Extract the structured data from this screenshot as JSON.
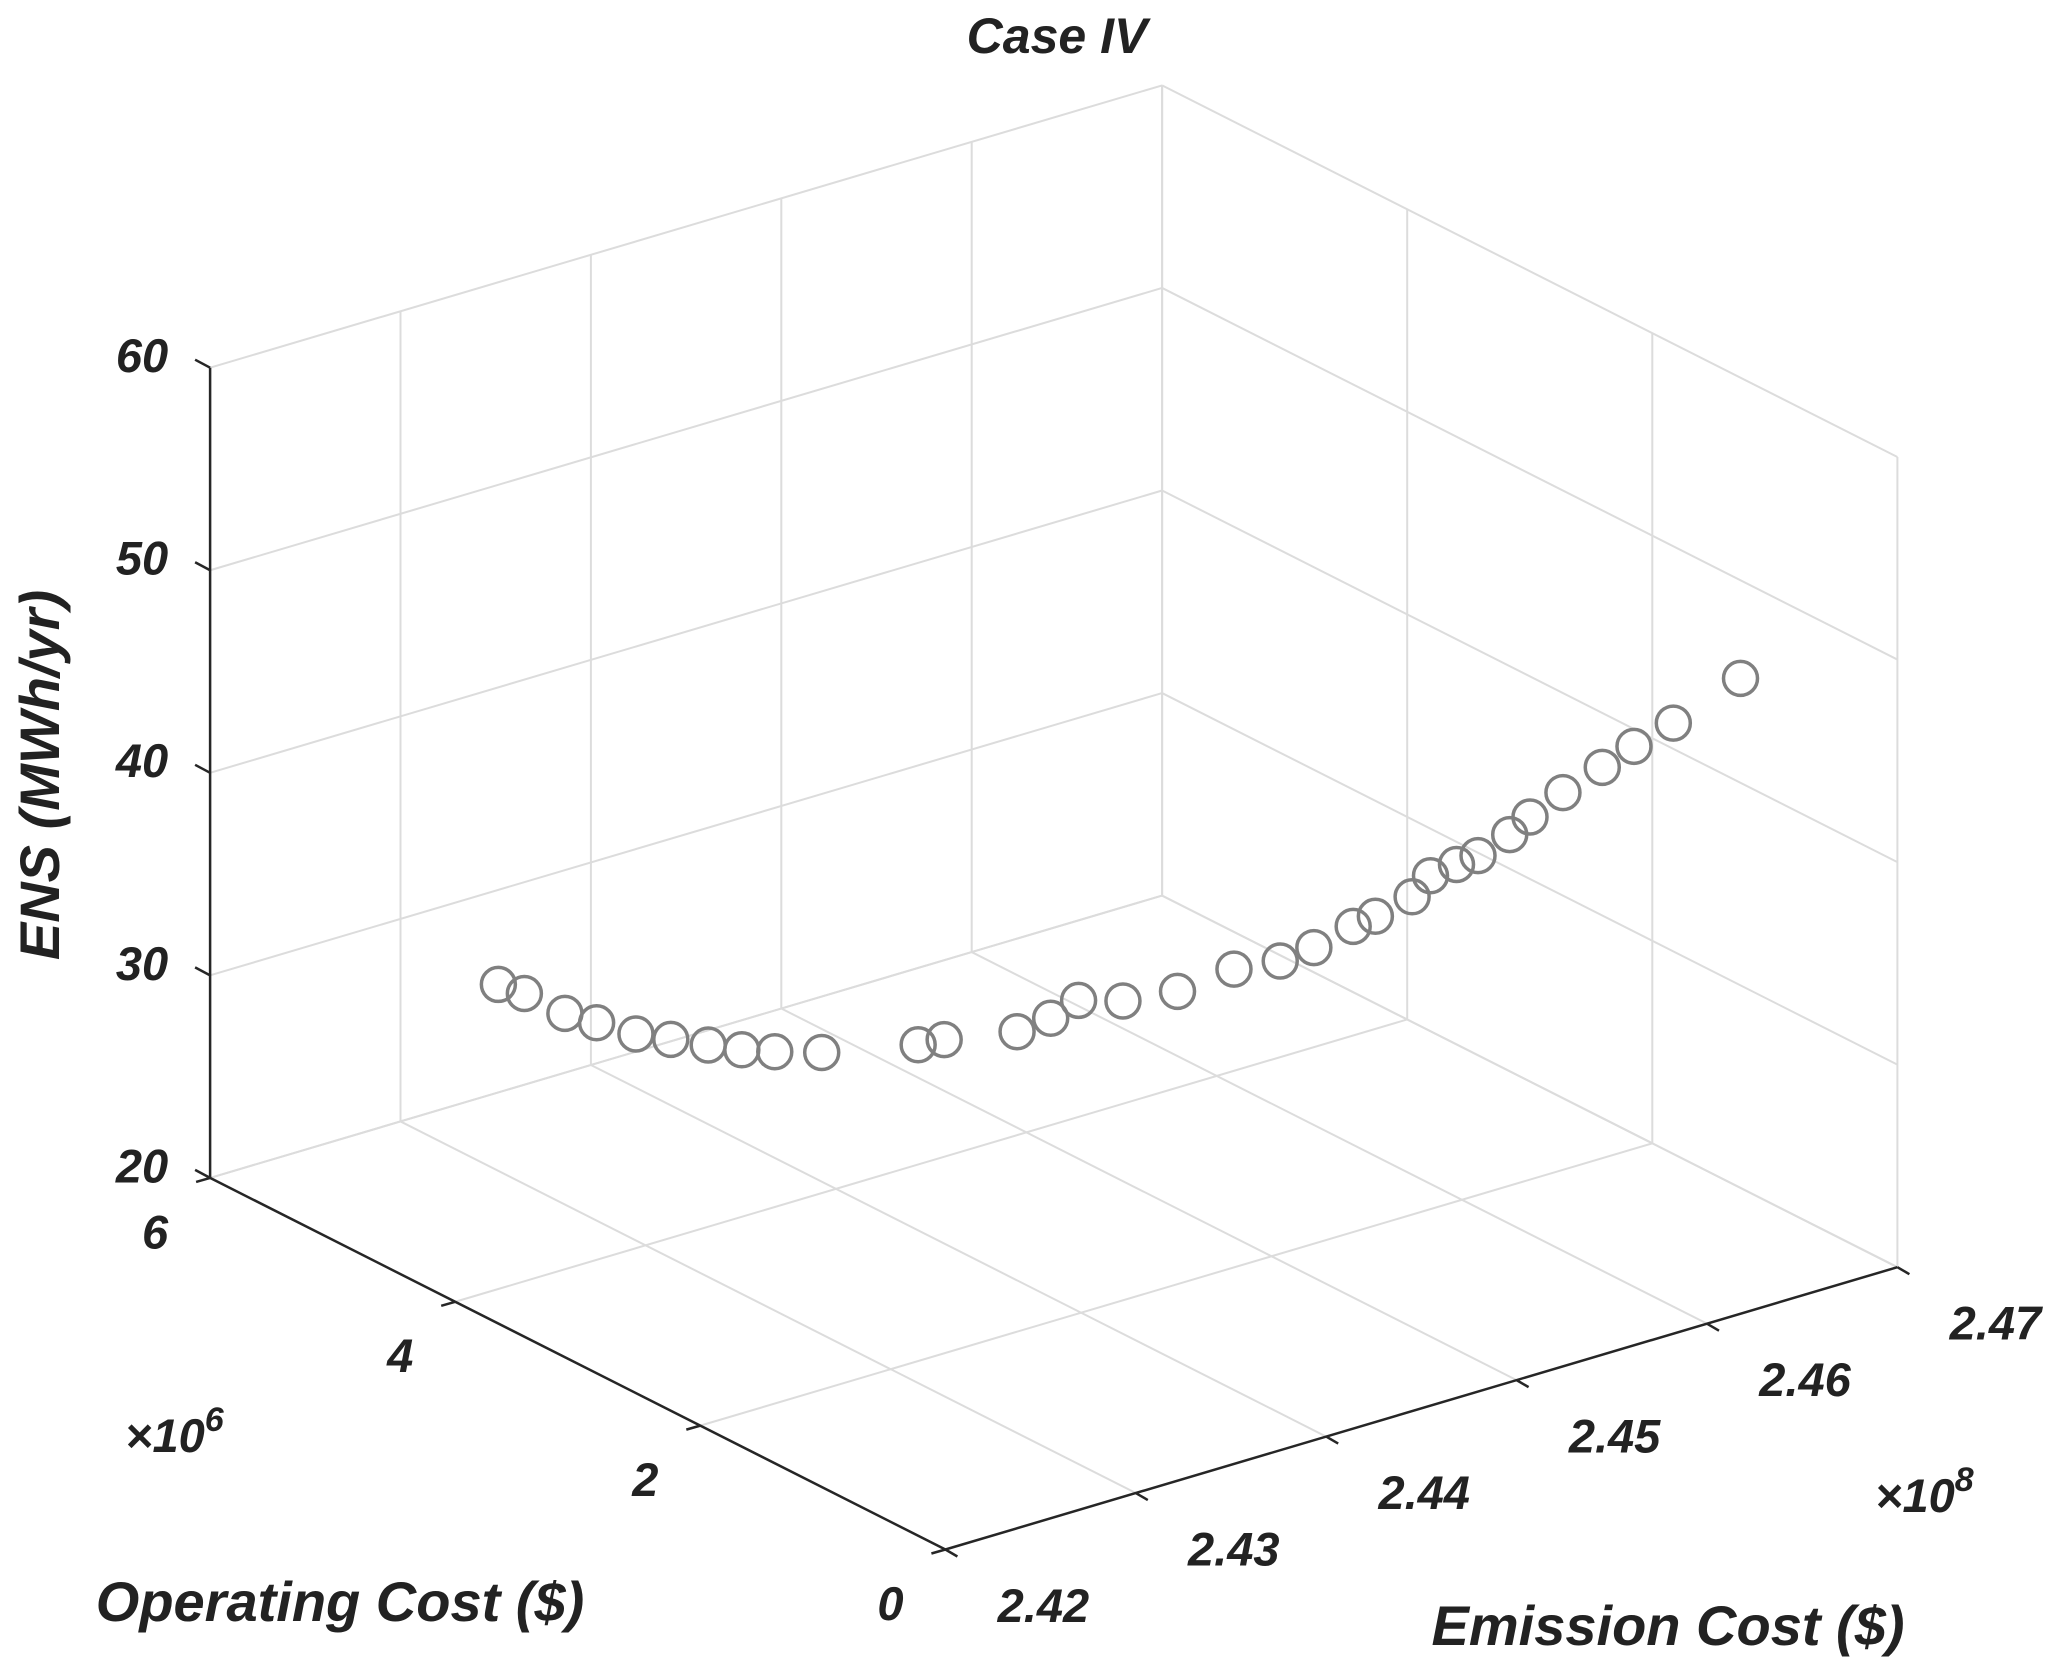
{
  "chart_data": {
    "type": "scatter3d",
    "title": "Case IV",
    "xlabel": "Operating Cost ($)",
    "ylabel": "Emission Cost ($)",
    "zlabel": "ENS (MWh/yr)",
    "x_multiplier": {
      "base": "×10",
      "exponent": "6"
    },
    "y_multiplier": {
      "base": "×10",
      "exponent": "8"
    },
    "xlim": [
      0,
      6
    ],
    "xticks": [
      0,
      2,
      4,
      6
    ],
    "ylim": [
      2.42,
      2.47
    ],
    "yticks": [
      2.42,
      2.43,
      2.44,
      2.45,
      2.46,
      2.47
    ],
    "zlim": [
      20,
      60
    ],
    "zticks": [
      20,
      30,
      40,
      50,
      60
    ],
    "grid": true,
    "series": [
      {
        "color": "#808080",
        "marker": "open-circle",
        "x": [
          5.45,
          5.3,
          5.14,
          4.99,
          4.84,
          4.68,
          4.53,
          4.38,
          4.22,
          4.07,
          3.92,
          3.77,
          3.61,
          3.46,
          3.31,
          3.15,
          3.0,
          2.85,
          2.69,
          2.54,
          2.39,
          2.24,
          2.08,
          1.93,
          1.78,
          1.62,
          1.47,
          1.32,
          1.16,
          1.01,
          0.86,
          0.71,
          0.55
        ],
        "y": [
          2.4316,
          2.432,
          2.4331,
          2.4338,
          2.4349,
          2.4357,
          2.4367,
          2.4375,
          2.4382,
          2.4397,
          2.4438,
          2.4442,
          2.447,
          2.4478,
          2.4483,
          2.4496,
          2.4515,
          2.4535,
          2.4549,
          2.4557,
          2.4568,
          2.457,
          2.4579,
          2.4579,
          2.4583,
          2.4584,
          2.4591,
          2.4592,
          2.4599,
          2.461,
          2.4617,
          2.4628,
          2.4653
        ],
        "z": [
          28.0,
          27.9,
          27.1,
          26.9,
          26.5,
          26.5,
          26.4,
          26.4,
          26.6,
          26.6,
          26.3,
          26.9,
          27.0,
          27.9,
          29.1,
          29.2,
          29.6,
          30.6,
          31.1,
          32.0,
          33.2,
          34.1,
          35.3,
          36.8,
          37.7,
          38.6,
          39.9,
          41.2,
          42.7,
          44.1,
          45.4,
          46.7,
          48.7
        ]
      }
    ]
  }
}
